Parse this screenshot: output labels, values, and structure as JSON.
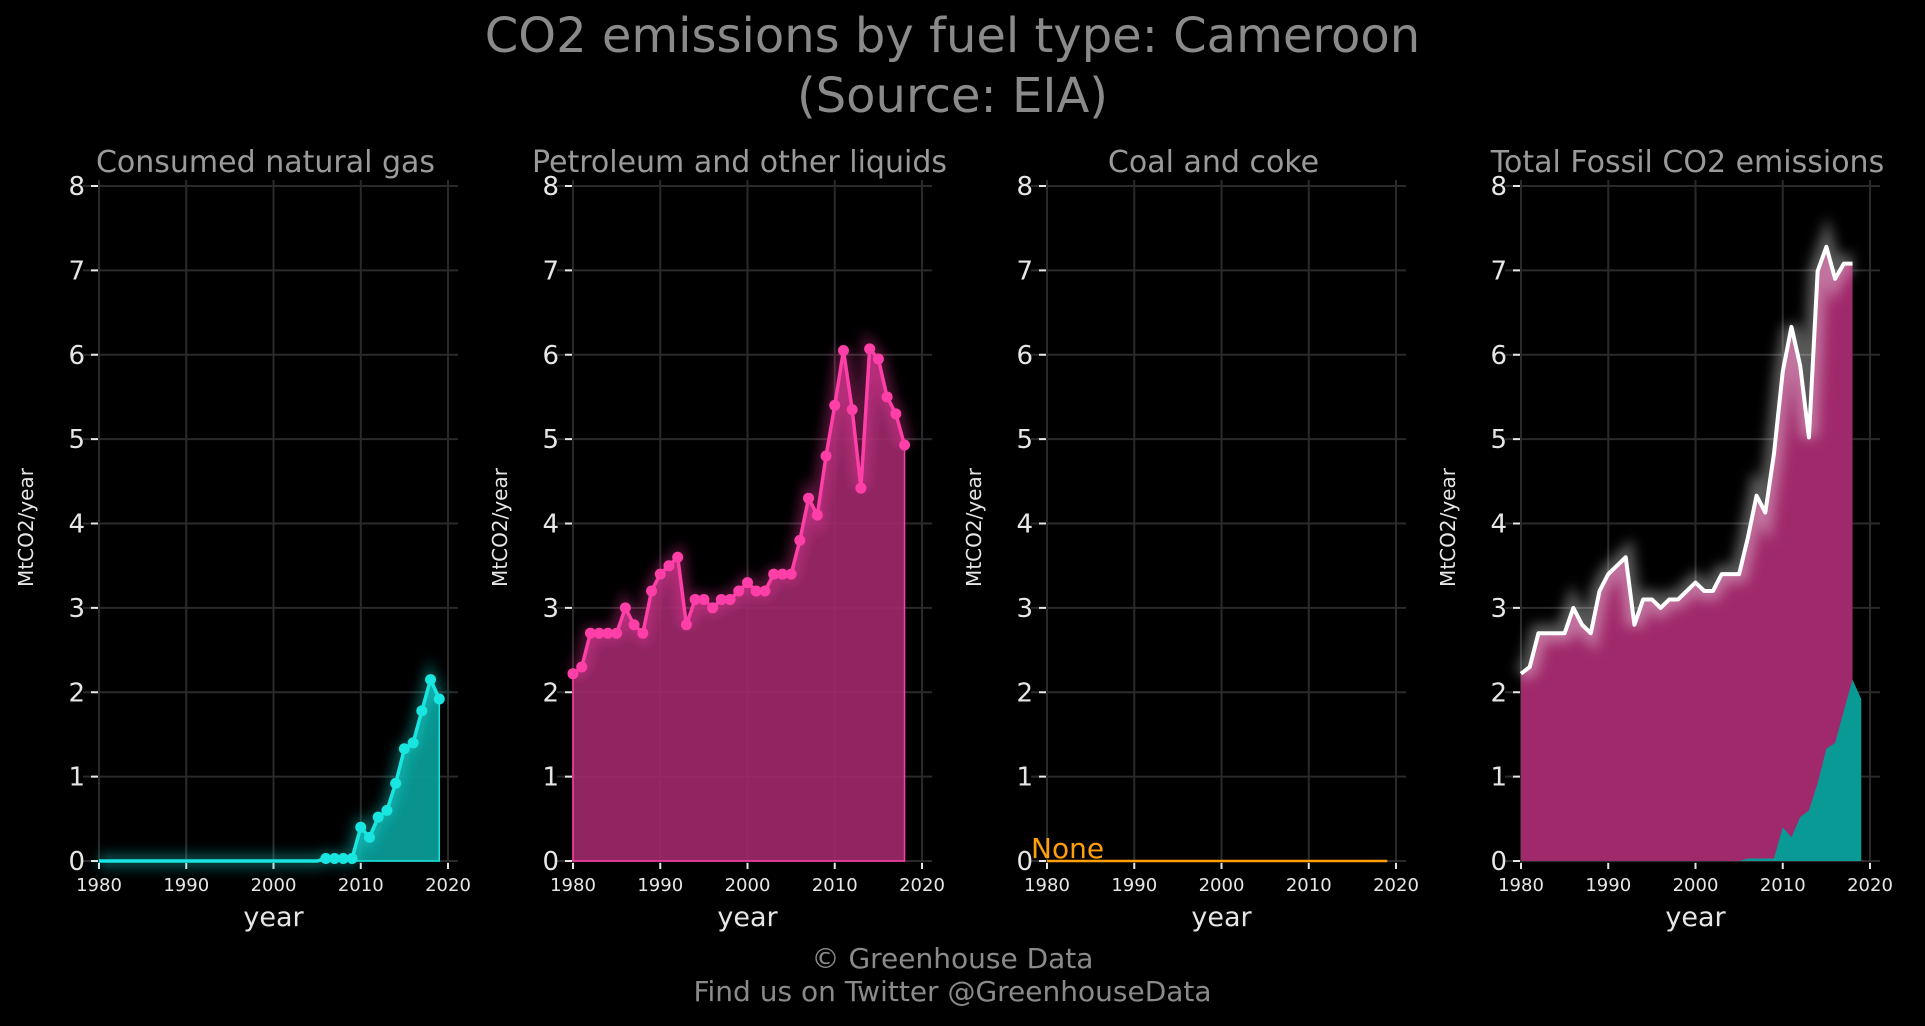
{
  "title": {
    "line1": "CO2 emissions by fuel type: Cameroon",
    "line2": "(Source: EIA)"
  },
  "footer": {
    "line1": "© Greenhouse Data",
    "line2": "Find us on Twitter @GreenhouseData"
  },
  "colors": {
    "background": "#000000",
    "gas": "#19e6e0",
    "gas_fill": "#0a9a96",
    "petroleum": "#ff3fa8",
    "petroleum_fill": "#a0296b",
    "coal": "#ff9f0a",
    "total_line": "#ffffff",
    "grid": "#2a2a2a"
  },
  "chart_data": [
    {
      "type": "area",
      "title": "Consumed natural gas",
      "xlabel": "year",
      "ylabel": "MtCO2/year",
      "xlim": [
        1980,
        2020
      ],
      "ylim": [
        0,
        8
      ],
      "xticks": [
        1980,
        1990,
        2000,
        2010,
        2020
      ],
      "yticks": [
        0,
        1,
        2,
        3,
        4,
        5,
        6,
        7,
        8
      ],
      "grid": true,
      "x": [
        1980,
        1981,
        1982,
        1983,
        1984,
        1985,
        1986,
        1987,
        1988,
        1989,
        1990,
        1991,
        1992,
        1993,
        1994,
        1995,
        1996,
        1997,
        1998,
        1999,
        2000,
        2001,
        2002,
        2003,
        2004,
        2005,
        2006,
        2007,
        2008,
        2009,
        2010,
        2011,
        2012,
        2013,
        2014,
        2015,
        2016,
        2017,
        2018,
        2019
      ],
      "values": [
        0,
        0,
        0,
        0,
        0,
        0,
        0,
        0,
        0,
        0,
        0,
        0,
        0,
        0,
        0,
        0,
        0,
        0,
        0,
        0,
        0,
        0,
        0,
        0,
        0,
        0,
        0.03,
        0.03,
        0.03,
        0.03,
        0.4,
        0.28,
        0.52,
        0.6,
        0.92,
        1.33,
        1.4,
        1.78,
        2.15,
        1.92
      ],
      "markers_from": 2006
    },
    {
      "type": "area",
      "title": "Petroleum and other liquids",
      "xlabel": "year",
      "ylabel": "MtCO2/year",
      "xlim": [
        1980,
        2020
      ],
      "ylim": [
        0,
        8
      ],
      "xticks": [
        1980,
        1990,
        2000,
        2010,
        2020
      ],
      "yticks": [
        0,
        1,
        2,
        3,
        4,
        5,
        6,
        7,
        8
      ],
      "grid": true,
      "x": [
        1980,
        1981,
        1982,
        1983,
        1984,
        1985,
        1986,
        1987,
        1988,
        1989,
        1990,
        1991,
        1992,
        1993,
        1994,
        1995,
        1996,
        1997,
        1998,
        1999,
        2000,
        2001,
        2002,
        2003,
        2004,
        2005,
        2006,
        2007,
        2008,
        2009,
        2010,
        2011,
        2012,
        2013,
        2014,
        2015,
        2016,
        2017,
        2018
      ],
      "values": [
        2.22,
        2.3,
        2.7,
        2.7,
        2.7,
        2.7,
        3.0,
        2.8,
        2.7,
        3.2,
        3.4,
        3.5,
        3.6,
        2.8,
        3.1,
        3.1,
        3.0,
        3.1,
        3.1,
        3.2,
        3.3,
        3.2,
        3.2,
        3.4,
        3.4,
        3.4,
        3.8,
        4.3,
        4.1,
        4.8,
        5.4,
        6.05,
        5.35,
        4.42,
        6.07,
        5.95,
        5.5,
        5.3,
        4.93
      ],
      "markers_from": 1980
    },
    {
      "type": "line",
      "title": "Coal and coke",
      "xlabel": "year",
      "ylabel": "MtCO2/year",
      "xlim": [
        1980,
        2020
      ],
      "ylim": [
        0,
        8
      ],
      "xticks": [
        1980,
        1990,
        2000,
        2010,
        2020
      ],
      "yticks": [
        0,
        1,
        2,
        3,
        4,
        5,
        6,
        7,
        8
      ],
      "grid": true,
      "annotation": "None",
      "x": [
        1980,
        2019
      ],
      "values": [
        0,
        0
      ]
    },
    {
      "type": "area",
      "title": "Total Fossil CO2 emissions",
      "xlabel": "year",
      "ylabel": "MtCO2/year",
      "xlim": [
        1980,
        2020
      ],
      "ylim": [
        0,
        8
      ],
      "xticks": [
        1980,
        1990,
        2000,
        2010,
        2020
      ],
      "yticks": [
        0,
        1,
        2,
        3,
        4,
        5,
        6,
        7,
        8
      ],
      "grid": true,
      "x": [
        1980,
        1981,
        1982,
        1983,
        1984,
        1985,
        1986,
        1987,
        1988,
        1989,
        1990,
        1991,
        1992,
        1993,
        1994,
        1995,
        1996,
        1997,
        1998,
        1999,
        2000,
        2001,
        2002,
        2003,
        2004,
        2005,
        2006,
        2007,
        2008,
        2009,
        2010,
        2011,
        2012,
        2013,
        2014,
        2015,
        2016,
        2017,
        2018
      ],
      "total": [
        2.22,
        2.3,
        2.7,
        2.7,
        2.7,
        2.7,
        3.0,
        2.8,
        2.7,
        3.2,
        3.4,
        3.5,
        3.6,
        2.8,
        3.1,
        3.1,
        3.0,
        3.1,
        3.1,
        3.2,
        3.3,
        3.2,
        3.2,
        3.4,
        3.4,
        3.4,
        3.83,
        4.33,
        4.13,
        4.83,
        5.8,
        6.33,
        5.87,
        5.02,
        6.99,
        7.28,
        6.9,
        7.08,
        7.08
      ]
    }
  ]
}
